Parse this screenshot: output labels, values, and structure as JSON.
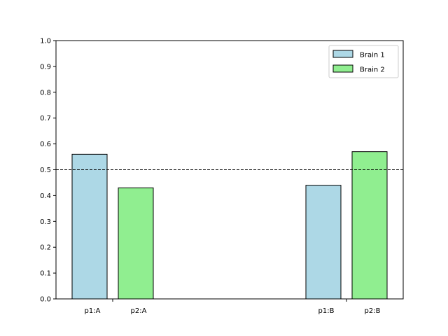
{
  "chart_data": {
    "type": "bar",
    "title": "",
    "xlabel": "",
    "ylabel": "",
    "ylim": [
      0,
      1.0
    ],
    "yticks": [
      0.0,
      0.1,
      0.2,
      0.3,
      0.4,
      0.5,
      0.6,
      0.7,
      0.8,
      0.9,
      1.0
    ],
    "ytick_labels": [
      "0.0",
      "0.1",
      "0.2",
      "0.3",
      "0.4",
      "0.5",
      "0.6",
      "0.7",
      "0.8",
      "0.9",
      "1.0"
    ],
    "groups": [
      "A",
      "B"
    ],
    "reference_line": {
      "y": 0.5,
      "style": "dashed",
      "color": "#000000"
    },
    "series": [
      {
        "name": "Brain 1",
        "color": "#add8e6",
        "labels": [
          "p1:A",
          "p1:B"
        ],
        "values": [
          0.56,
          0.44
        ]
      },
      {
        "name": "Brain 2",
        "color": "#90ee90",
        "labels": [
          "p2:A",
          "p2:B"
        ],
        "values": [
          0.43,
          0.57
        ]
      }
    ],
    "legend_position": "top-right",
    "grid": false
  }
}
